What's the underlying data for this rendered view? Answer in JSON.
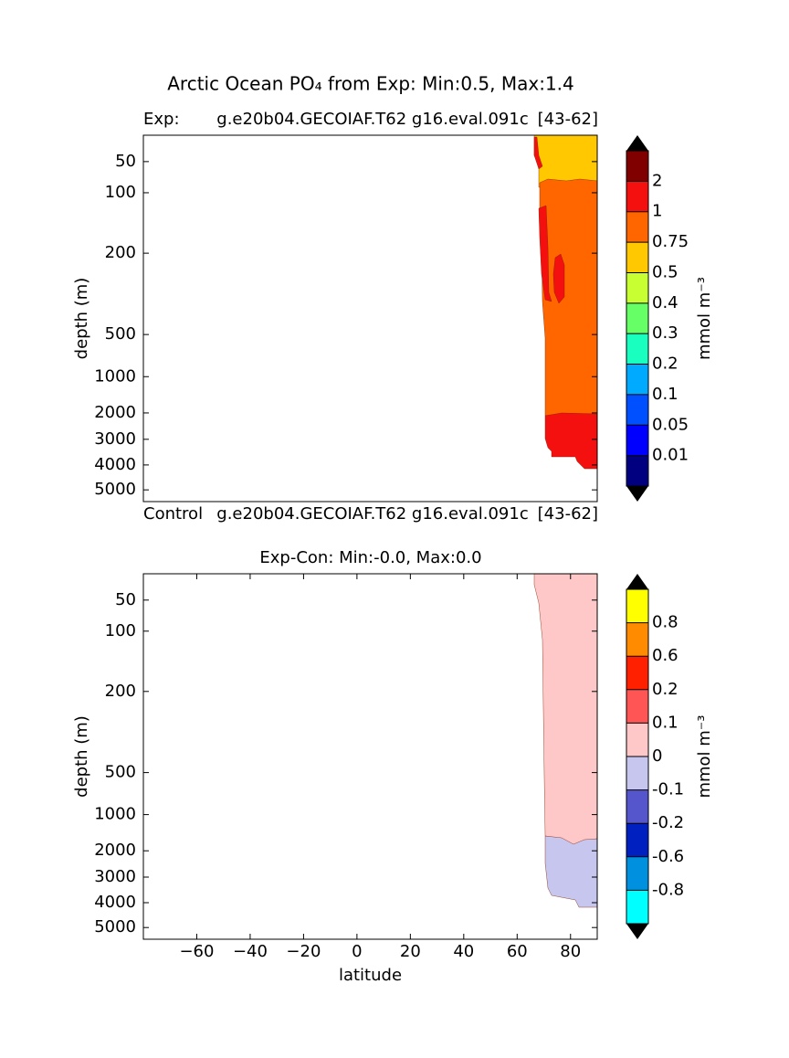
{
  "chart_data": [
    {
      "type": "contour",
      "title": "Arctic Ocean PO₄ from Exp: Min:0.5, Max:1.4",
      "left_title": "Exp:",
      "center_title": "g.e20b04.GECOIAF.T62 g16.eval.091c",
      "right_title": "[43-62]",
      "bottom_left": "Control",
      "bottom_center": "g.e20b04.GECOIAF.T62 g16.eval.091c",
      "bottom_right": "[43-62]",
      "ylabel": "depth (m)",
      "ylim": [
        0,
        5500
      ],
      "y_inverted": true,
      "yticks": [
        50,
        100,
        200,
        500,
        1000,
        2000,
        3000,
        4000,
        5000
      ],
      "colorbar": {
        "label": "mmol m⁻³",
        "levels": [
          0.01,
          0.05,
          0.1,
          0.2,
          0.3,
          0.4,
          0.5,
          0.75,
          1,
          2
        ],
        "colors": [
          "#000080",
          "#0000ff",
          "#0050ff",
          "#00aaff",
          "#19ffc0",
          "#66ff66",
          "#c8ff32",
          "#ffc800",
          "#ff6600",
          "#f51010",
          "#800000"
        ]
      }
    },
    {
      "type": "contour",
      "title": "Exp-Con: Min:-0.0, Max:0.0",
      "ylabel": "depth (m)",
      "ylim": [
        0,
        5500
      ],
      "y_inverted": true,
      "yticks": [
        50,
        100,
        200,
        500,
        1000,
        2000,
        3000,
        4000,
        5000
      ],
      "xlabel": "latitude",
      "xlim": [
        -80,
        90
      ],
      "xticks": [
        {
          "value": -60,
          "label": "−60"
        },
        {
          "value": -40,
          "label": "−40"
        },
        {
          "value": -20,
          "label": "−20"
        },
        0,
        20,
        40,
        60,
        80
      ],
      "colorbar": {
        "label": "mmol m⁻³",
        "levels": [
          -0.8,
          -0.6,
          -0.2,
          -0.1,
          0,
          0.1,
          0.2,
          0.6,
          0.8
        ],
        "colors": [
          "#00ffff",
          "#0090e0",
          "#0020c0",
          "#5555cc",
          "#c6c6ee",
          "#ffc8c8",
          "#ff5555",
          "#ff2000",
          "#ff8c00",
          "#ffff00"
        ]
      }
    }
  ]
}
